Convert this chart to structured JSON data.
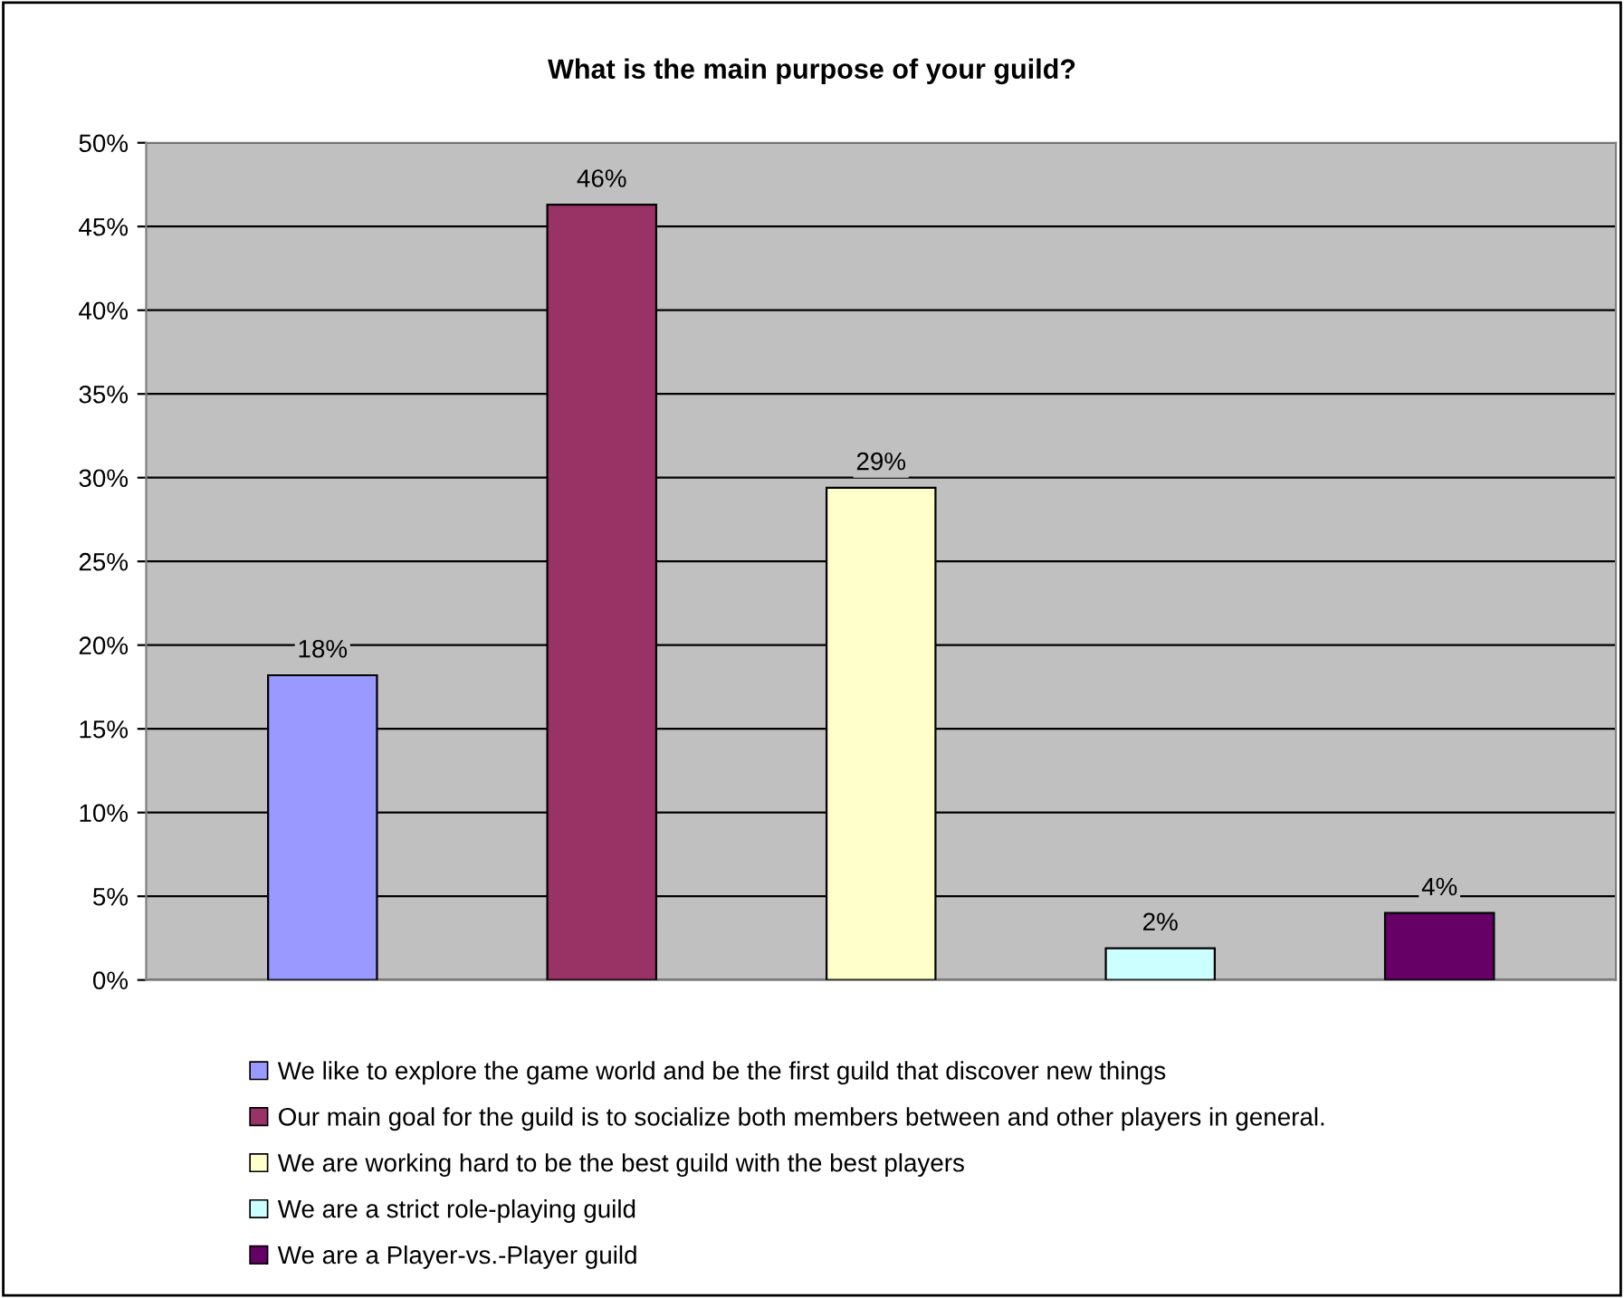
{
  "chart_data": {
    "type": "bar",
    "title": "What is the main purpose of your guild?",
    "categories": [
      null
    ],
    "series": [
      {
        "name": "We like to explore the game world and be the first guild that discover new things",
        "color": "#9999ff",
        "values": [
          18.2
        ],
        "value_labels": [
          "18%"
        ]
      },
      {
        "name": "Our main goal for the guild is to socialize both members between and other players in general.",
        "color": "#993366",
        "values": [
          46.3
        ],
        "value_labels": [
          "46%"
        ]
      },
      {
        "name": "We are working hard to be the best guild with the best players",
        "color": "#ffffcc",
        "values": [
          29.4
        ],
        "value_labels": [
          "29%"
        ]
      },
      {
        "name": "We are a strict role-playing guild",
        "color": "#ccffff",
        "values": [
          1.9
        ],
        "value_labels": [
          "2%"
        ]
      },
      {
        "name": "We are a Player-vs.-Player guild",
        "color": "#660066",
        "values": [
          4.0
        ],
        "value_labels": [
          "4%"
        ]
      }
    ],
    "ylim": [
      0,
      50
    ],
    "yticks": [
      {
        "value": 0,
        "label": "0%"
      },
      {
        "value": 5,
        "label": "5%"
      },
      {
        "value": 10,
        "label": "10%"
      },
      {
        "value": 15,
        "label": "15%"
      },
      {
        "value": 20,
        "label": "20%"
      },
      {
        "value": 25,
        "label": "25%"
      },
      {
        "value": 30,
        "label": "30%"
      },
      {
        "value": 35,
        "label": "35%"
      },
      {
        "value": 40,
        "label": "40%"
      },
      {
        "value": 45,
        "label": "45%"
      },
      {
        "value": 50,
        "label": "50%"
      }
    ],
    "grid": "y",
    "legend": "bottom"
  }
}
